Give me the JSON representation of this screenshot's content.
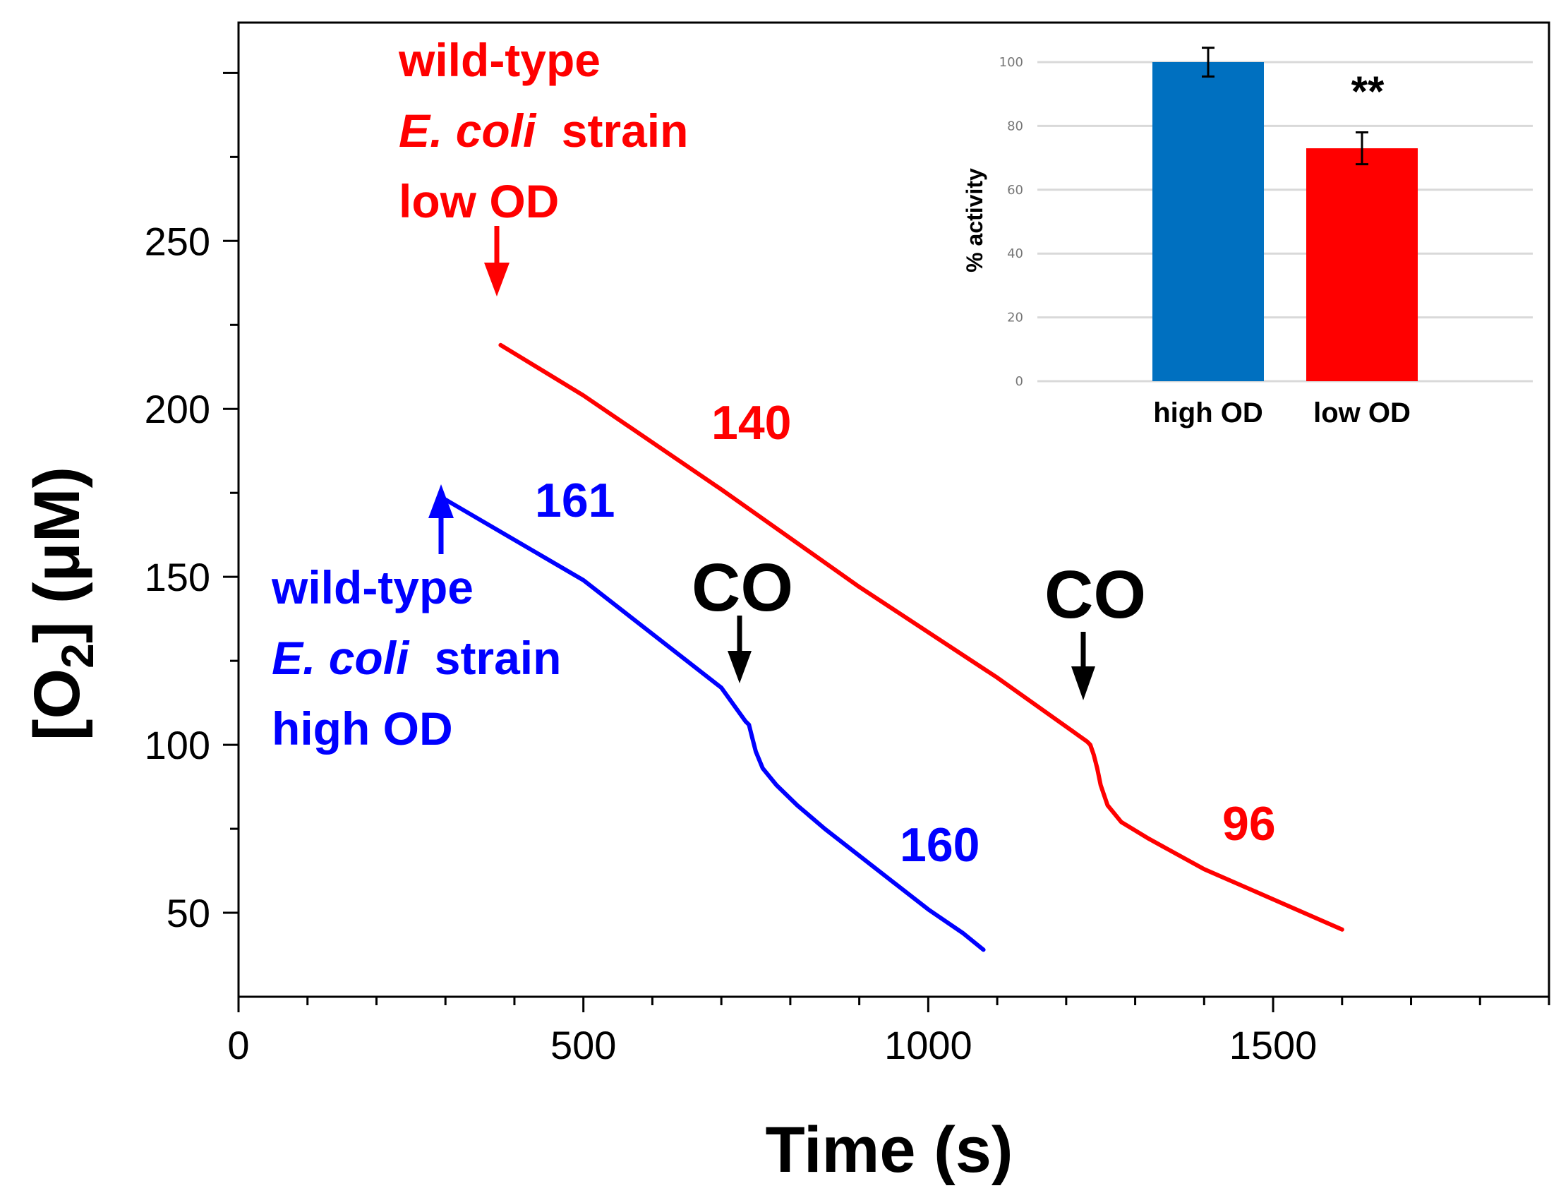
{
  "chart_data": [
    {
      "type": "line",
      "title": "",
      "xlabel": "Time (s)",
      "ylabel_prefix": "[O",
      "ylabel_sub": "2",
      "ylabel_suffix": "] (μM)",
      "xlim": [
        0,
        1900
      ],
      "ylim": [
        25,
        315
      ],
      "xticks": [
        0,
        500,
        1000,
        1500
      ],
      "xtick_labels": [
        "0",
        "500",
        "1000",
        "1500"
      ],
      "yticks": [
        50,
        100,
        150,
        200,
        250
      ],
      "ytick_labels": [
        "50",
        "100",
        "150",
        "200",
        "250"
      ],
      "series": [
        {
          "name": "wild-type E. coli strain high OD",
          "color": "#0000ff",
          "x": [
            300,
            500,
            700,
            735,
            740,
            745,
            750,
            760,
            780,
            810,
            850,
            900,
            950,
            1000,
            1050,
            1080
          ],
          "y": [
            173,
            149,
            117,
            107,
            106,
            102,
            98,
            93,
            88,
            82,
            75,
            67,
            59,
            51,
            44,
            39
          ]
        },
        {
          "name": "wild-type E. coli strain low OD",
          "color": "#ff0000",
          "x": [
            380,
            500,
            700,
            900,
            1100,
            1230,
            1235,
            1240,
            1245,
            1250,
            1260,
            1280,
            1320,
            1400,
            1500,
            1600
          ],
          "y": [
            219,
            204,
            176,
            147,
            120,
            101,
            100,
            97,
            93,
            88,
            82,
            77,
            72,
            63,
            54,
            45
          ]
        }
      ],
      "annotations": {
        "red_title": [
          "wild-type",
          "E. coli",
          "strain",
          "low OD"
        ],
        "blue_title": [
          "wild-type",
          "E. coli",
          "strain",
          "high OD"
        ],
        "rates": {
          "red_before": "140",
          "red_after": "96",
          "blue_before": "161",
          "blue_after": "160"
        },
        "co_label": "CO"
      }
    },
    {
      "type": "bar",
      "title": "",
      "categories": [
        "high OD",
        "low OD"
      ],
      "values": [
        100,
        73
      ],
      "errors": [
        4.5,
        5
      ],
      "colors": [
        "#0070c0",
        "#ff0000"
      ],
      "ylabel": "% activity",
      "ylim": [
        0,
        100
      ],
      "yticks": [
        "0",
        "20",
        "40",
        "60",
        "80",
        "100"
      ],
      "significance": "**"
    }
  ]
}
